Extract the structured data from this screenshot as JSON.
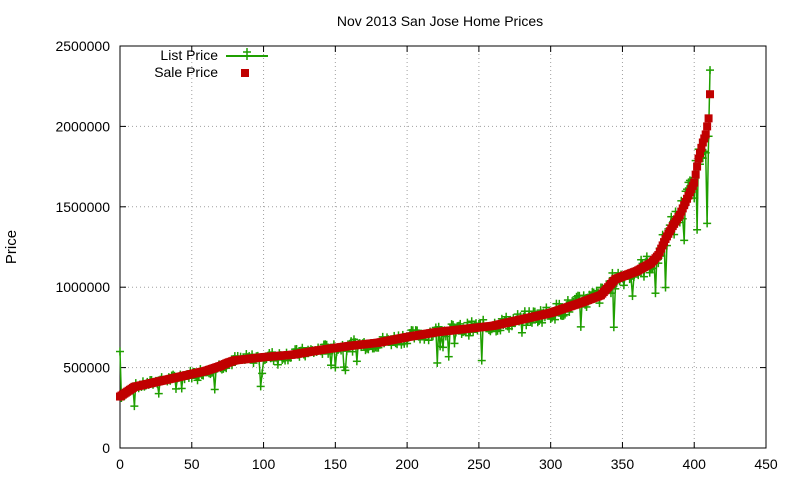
{
  "chart_data": {
    "type": "scatter",
    "title": "Nov 2013 San Jose Home Prices",
    "xlabel": "",
    "ylabel": "Price",
    "xlim": [
      0,
      450
    ],
    "ylim": [
      0,
      2500000
    ],
    "x_ticks": [
      0,
      50,
      100,
      150,
      200,
      250,
      300,
      350,
      400,
      450
    ],
    "y_ticks": [
      0,
      500000,
      1000000,
      1500000,
      2000000,
      2500000
    ],
    "grid": true,
    "legend_position": "top-left",
    "colors": {
      "list_price": "#1f9f00",
      "sale_price": "#c00000",
      "grid": "#a0a0a0",
      "axis": "#000000"
    },
    "sale_curve": [
      [
        0,
        320000
      ],
      [
        5,
        350000
      ],
      [
        10,
        380000
      ],
      [
        20,
        400000
      ],
      [
        30,
        420000
      ],
      [
        40,
        440000
      ],
      [
        50,
        460000
      ],
      [
        60,
        480000
      ],
      [
        70,
        510000
      ],
      [
        75,
        530000
      ],
      [
        80,
        545000
      ],
      [
        100,
        565000
      ],
      [
        120,
        580000
      ],
      [
        140,
        610000
      ],
      [
        160,
        635000
      ],
      [
        180,
        655000
      ],
      [
        200,
        690000
      ],
      [
        220,
        720000
      ],
      [
        240,
        740000
      ],
      [
        260,
        760000
      ],
      [
        280,
        800000
      ],
      [
        300,
        840000
      ],
      [
        320,
        900000
      ],
      [
        335,
        950000
      ],
      [
        340,
        1000000
      ],
      [
        345,
        1050000
      ],
      [
        360,
        1100000
      ],
      [
        370,
        1150000
      ],
      [
        375,
        1200000
      ],
      [
        380,
        1300000
      ],
      [
        385,
        1380000
      ],
      [
        390,
        1450000
      ],
      [
        395,
        1550000
      ],
      [
        400,
        1650000
      ],
      [
        403,
        1800000
      ],
      [
        406,
        1900000
      ],
      [
        408,
        1950000
      ],
      [
        410,
        2050000
      ],
      [
        411,
        2200000
      ]
    ],
    "list_deviation_seed": 7,
    "series": [
      {
        "name": "List Price"
      },
      {
        "name": "Sale Price"
      }
    ]
  }
}
